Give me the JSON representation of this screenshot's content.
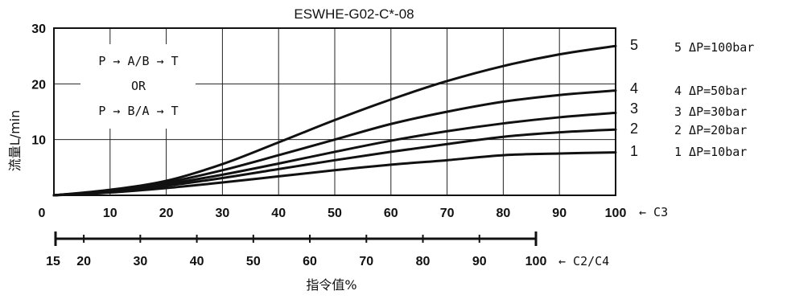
{
  "chart_data": {
    "type": "line",
    "title": "ESWHE-G02-C*-08",
    "ylabel": "流量L/min",
    "xlabel": "指令值%",
    "ylim": [
      0,
      30
    ],
    "yticks": [
      "0",
      "10",
      "20",
      "30"
    ],
    "xlim": [
      0,
      100
    ],
    "xticks": [
      "0",
      "10",
      "20",
      "30",
      "40",
      "50",
      "60",
      "70",
      "80",
      "90",
      "100"
    ],
    "x_axis_label": "← C3",
    "secondary_axis": {
      "ticks": [
        "15",
        "20",
        "30",
        "40",
        "50",
        "60",
        "70",
        "80",
        "90",
        "100"
      ],
      "label": "← C2/C4"
    },
    "grid": true,
    "annotation": {
      "line1": "P → A/B → T",
      "line2": "OR",
      "line3": "P → B/A → T"
    },
    "series": [
      {
        "name": "5 ΔP=100bar",
        "label": "5",
        "x": [
          0,
          10,
          20,
          30,
          40,
          50,
          60,
          70,
          80,
          90,
          100
        ],
        "values": [
          0,
          1.0,
          2.6,
          5.6,
          9.5,
          13.5,
          17.2,
          20.5,
          23.2,
          25.3,
          26.8
        ]
      },
      {
        "name": "4 ΔP=50bar",
        "label": "4",
        "x": [
          0,
          10,
          20,
          30,
          40,
          50,
          60,
          70,
          80,
          90,
          100
        ],
        "values": [
          0,
          0.9,
          2.3,
          4.5,
          7.2,
          10.0,
          12.8,
          15.0,
          16.8,
          18.0,
          18.8
        ]
      },
      {
        "name": "3 ΔP=30bar",
        "label": "3",
        "x": [
          0,
          10,
          20,
          30,
          40,
          50,
          60,
          70,
          80,
          90,
          100
        ],
        "values": [
          0,
          0.8,
          2.0,
          3.7,
          5.7,
          7.8,
          9.8,
          11.5,
          12.9,
          14.0,
          14.8
        ]
      },
      {
        "name": "2 ΔP=20bar",
        "label": "2",
        "x": [
          0,
          10,
          20,
          30,
          40,
          50,
          60,
          70,
          80,
          90,
          100
        ],
        "values": [
          0,
          0.7,
          1.7,
          3.1,
          4.7,
          6.3,
          7.8,
          9.2,
          10.5,
          11.3,
          11.8
        ]
      },
      {
        "name": "1 ΔP=10bar",
        "label": "1",
        "x": [
          0,
          10,
          20,
          30,
          40,
          50,
          60,
          70,
          80,
          90,
          100
        ],
        "values": [
          0,
          0.5,
          1.3,
          2.3,
          3.4,
          4.5,
          5.5,
          6.3,
          7.2,
          7.5,
          7.7
        ]
      }
    ]
  }
}
